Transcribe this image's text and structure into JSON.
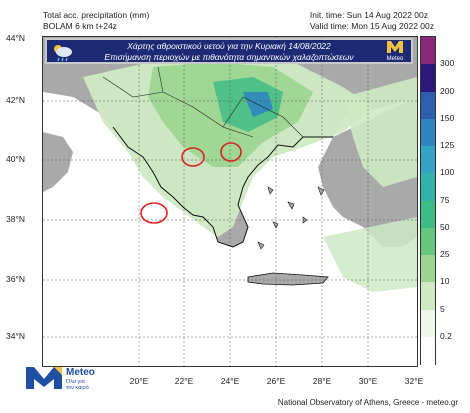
{
  "header": {
    "title_line1": "Total acc. precipitation (mm)",
    "title_line2": "BOLAM 6 km t+24z",
    "init_time": "Init. time: Sun 14 Aug 2022 00z",
    "valid_time": "Valid time: Mon 15 Aug 2022 00z"
  },
  "banner": {
    "line1": "Χάρτης αθροιστικού υετού για την Κυριακή 14/08/2022",
    "line2": "Επισήμανση περιοχών με πιθανότητα σημαντικών χαλαζοπτώσεων",
    "logo_text": "Meteo",
    "weather_icon": "cloud-sun-rain-icon"
  },
  "axes": {
    "lat_labels": [
      "44°N",
      "42°N",
      "40°N",
      "38°N",
      "36°N",
      "34°N"
    ],
    "lon_labels": [
      "20°E",
      "22°E",
      "24°E",
      "26°E",
      "28°E",
      "30°E",
      "32°E"
    ]
  },
  "colorbar": {
    "levels": [
      "300",
      "200",
      "150",
      "125",
      "100",
      "75",
      "50",
      "25",
      "10",
      "5",
      "0.2"
    ],
    "colors": [
      "#8a2a77",
      "#2b1a7a",
      "#2c5fae",
      "#2f86bf",
      "#35a3c3",
      "#35b1a9",
      "#3fbc86",
      "#66c67b",
      "#9bd590",
      "#cdeac3",
      "#eef7ea",
      "#ffffff"
    ]
  },
  "hail_markers": [
    "north-greece-west",
    "chalkidiki",
    "zakynthos-ionian"
  ],
  "footer": {
    "credit": "National Observatory of Athens, Greece - meteo.gr",
    "logo_name": "Meteo",
    "logo_sub1": "Όλα για",
    "logo_sub2": "τον καιρό"
  }
}
